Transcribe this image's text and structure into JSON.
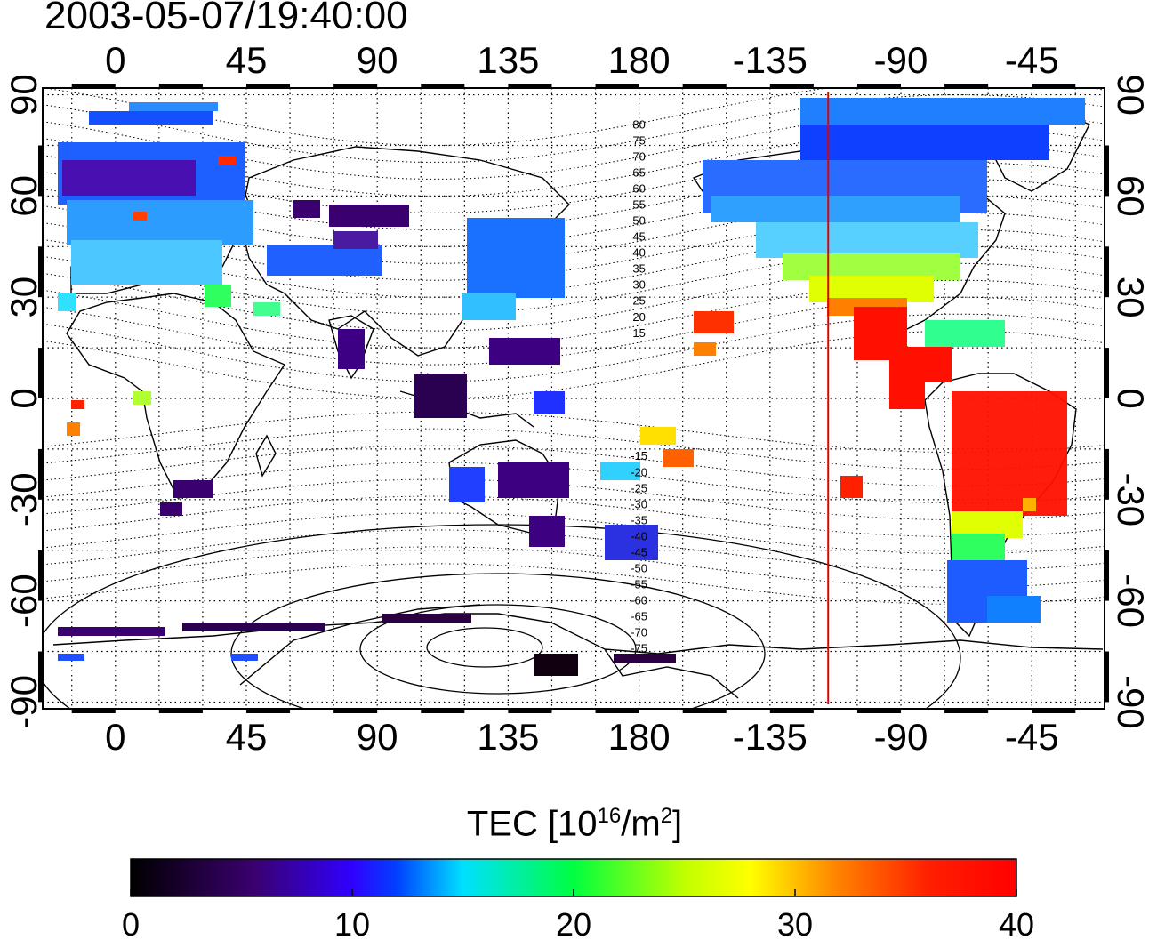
{
  "timestamp": "2003-05-07/19:40:00",
  "map": {
    "lon_ticks": [
      0,
      45,
      90,
      135,
      180,
      -135,
      -90,
      -45
    ],
    "lon_tick_labels": [
      "0",
      "45",
      "90",
      "135",
      "180",
      "-135",
      "-90",
      "-45"
    ],
    "lat_ticks": [
      90,
      60,
      30,
      0,
      -30,
      -60,
      -90
    ],
    "lat_tick_labels": [
      "90",
      "60",
      "30",
      "0",
      "-30",
      "-60",
      "-90"
    ],
    "lon_range": [
      -25,
      340
    ],
    "lat_range": [
      -92,
      92
    ],
    "grid": true,
    "marker_line_lon": -115,
    "marker_line_color": "#e00000",
    "contour_labels": [
      "80",
      "75",
      "70",
      "65",
      "60",
      "55",
      "50",
      "45",
      "40",
      "35",
      "30",
      "25",
      "20",
      "15",
      "-15",
      "-20",
      "-25",
      "-30",
      "-35",
      "-40",
      "-45",
      "-50",
      "-55",
      "-60",
      "-65",
      "-70",
      "-75"
    ]
  },
  "colorbar": {
    "title_prefix": "TEC  [10",
    "title_sup1": "16",
    "title_mid": "/m",
    "title_sup2": "2",
    "title_suffix": "]",
    "min": 0,
    "max": 40,
    "tick_labels": [
      "0",
      "10",
      "20",
      "30",
      "40"
    ],
    "colormap": [
      "#000000",
      "#4b0082",
      "#0000ff",
      "#00ffff",
      "#00ff00",
      "#ffff00",
      "#ff8000",
      "#ff0000"
    ]
  }
}
